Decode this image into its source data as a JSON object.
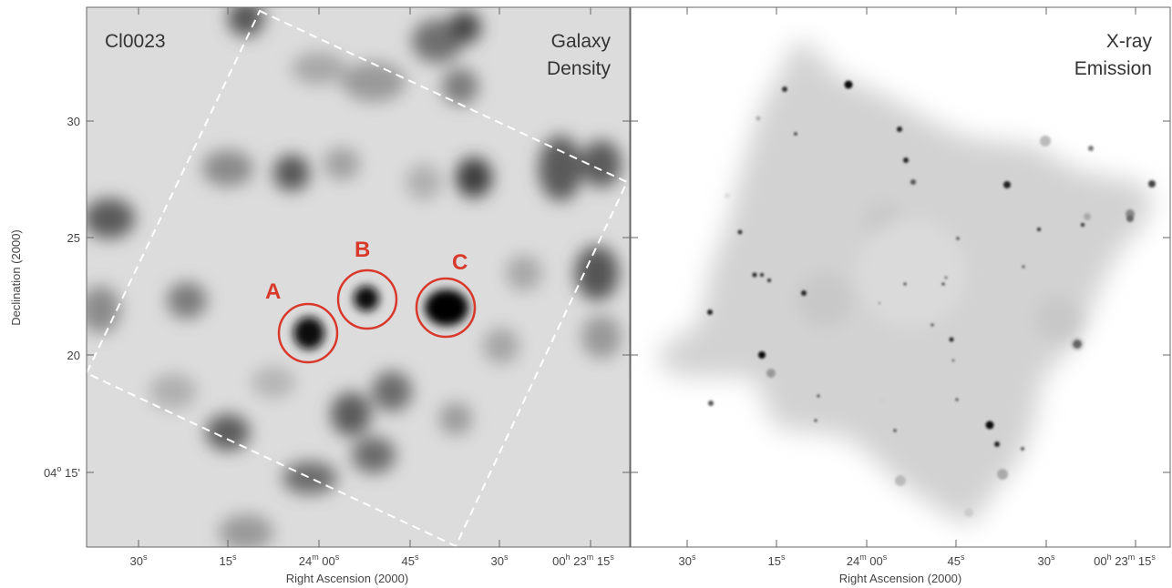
{
  "left_panel": {
    "id_label": "Cl0023",
    "title_line1": "Galaxy",
    "title_line2": "Density",
    "regions": [
      {
        "label": "A"
      },
      {
        "label": "B"
      },
      {
        "label": "C"
      }
    ]
  },
  "right_panel": {
    "title_line1": "X-ray",
    "title_line2": "Emission"
  },
  "x_axis": {
    "label": "Right Ascension (2000)",
    "ticks": [
      {
        "main": "30",
        "sup1": "s",
        "mid": "",
        "sup2": ""
      },
      {
        "main": "15",
        "sup1": "s",
        "mid": "",
        "sup2": ""
      },
      {
        "main": "24",
        "sup1": "m",
        "mid": " 00",
        "sup2": "s"
      },
      {
        "main": "45",
        "sup1": "s",
        "mid": "",
        "sup2": ""
      },
      {
        "main": "30",
        "sup1": "s",
        "mid": "",
        "sup2": ""
      },
      {
        "main": "00",
        "sup1": "h",
        "mid": " 23",
        "sup2": "m",
        "tail": " 15",
        "sup3": "s"
      }
    ]
  },
  "y_axis": {
    "label": "Declination (2000)",
    "ticks": [
      "30",
      "25",
      "20"
    ],
    "bottom_tick": {
      "deg": "04",
      "deg_sym": "o",
      "min": " 15'"
    }
  },
  "colors": {
    "region_circle": "#d8392b",
    "dashed_box": "#ffffff"
  }
}
